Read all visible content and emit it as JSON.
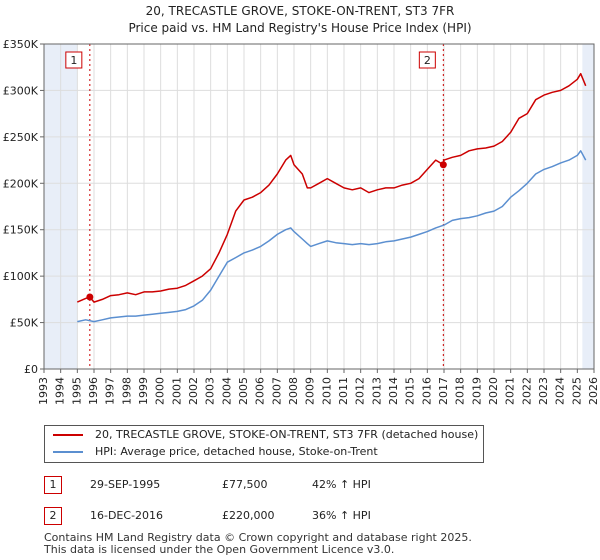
{
  "chart_data": {
    "type": "line",
    "title": "20, TRECASTLE GROVE, STOKE-ON-TRENT, ST3 7FR",
    "subtitle": "Price paid vs. HM Land Registry's House Price Index (HPI)",
    "xlim": [
      1993,
      2026
    ],
    "ylim": [
      0,
      350000
    ],
    "x_ticks": [
      1993,
      1994,
      1995,
      1996,
      1997,
      1998,
      1999,
      2000,
      2001,
      2002,
      2003,
      2004,
      2005,
      2006,
      2007,
      2008,
      2009,
      2010,
      2011,
      2012,
      2013,
      2014,
      2015,
      2016,
      2017,
      2018,
      2019,
      2020,
      2021,
      2022,
      2023,
      2024,
      2025,
      2026
    ],
    "y_ticks": [
      0,
      50000,
      100000,
      150000,
      200000,
      250000,
      300000,
      350000
    ],
    "y_tick_labels": [
      "£0",
      "£50K",
      "£100K",
      "£150K",
      "£200K",
      "£250K",
      "£300K",
      "£350K"
    ],
    "colors": {
      "property": "#cc0000",
      "hpi": "#5b8fd0",
      "shade": "#e8eef8",
      "grid": "#dddddd"
    },
    "shaded_ranges": [
      [
        1993,
        1995
      ],
      [
        2025.3,
        2026
      ]
    ],
    "series": [
      {
        "name": "20, TRECASTLE GROVE, STOKE-ON-TRENT, ST3 7FR (detached house)",
        "color": "#cc0000",
        "x": [
          1995.0,
          1995.5,
          1995.75,
          1996.0,
          1996.5,
          1997.0,
          1997.5,
          1998.0,
          1998.5,
          1999.0,
          1999.5,
          2000.0,
          2000.5,
          2001.0,
          2001.5,
          2002.0,
          2002.5,
          2003.0,
          2003.5,
          2004.0,
          2004.5,
          2005.0,
          2005.5,
          2006.0,
          2006.5,
          2007.0,
          2007.5,
          2007.8,
          2008.0,
          2008.5,
          2008.8,
          2009.0,
          2009.5,
          2010.0,
          2010.5,
          2011.0,
          2011.5,
          2012.0,
          2012.5,
          2013.0,
          2013.5,
          2014.0,
          2014.5,
          2015.0,
          2015.5,
          2016.0,
          2016.5,
          2016.96,
          2017.0,
          2017.5,
          2018.0,
          2018.5,
          2019.0,
          2019.5,
          2020.0,
          2020.5,
          2021.0,
          2021.5,
          2022.0,
          2022.5,
          2023.0,
          2023.5,
          2024.0,
          2024.5,
          2025.0,
          2025.2,
          2025.5
        ],
        "y": [
          72000,
          76000,
          77500,
          72000,
          75000,
          79000,
          80000,
          82000,
          80000,
          83000,
          83000,
          84000,
          86000,
          87000,
          90000,
          95000,
          100000,
          108000,
          125000,
          145000,
          170000,
          182000,
          185000,
          190000,
          198000,
          210000,
          225000,
          230000,
          220000,
          210000,
          195000,
          195000,
          200000,
          205000,
          200000,
          195000,
          193000,
          195000,
          190000,
          193000,
          195000,
          195000,
          198000,
          200000,
          205000,
          215000,
          225000,
          220000,
          225000,
          228000,
          230000,
          235000,
          237000,
          238000,
          240000,
          245000,
          255000,
          270000,
          275000,
          290000,
          295000,
          298000,
          300000,
          305000,
          312000,
          318000,
          305000
        ]
      },
      {
        "name": "HPI: Average price, detached house, Stoke-on-Trent",
        "color": "#5b8fd0",
        "x": [
          1995.0,
          1995.5,
          1996.0,
          1996.5,
          1997.0,
          1997.5,
          1998.0,
          1998.5,
          1999.0,
          1999.5,
          2000.0,
          2000.5,
          2001.0,
          2001.5,
          2002.0,
          2002.5,
          2003.0,
          2003.5,
          2004.0,
          2004.5,
          2005.0,
          2005.5,
          2006.0,
          2006.5,
          2007.0,
          2007.5,
          2007.8,
          2008.0,
          2008.5,
          2008.8,
          2009.0,
          2009.5,
          2010.0,
          2010.5,
          2011.0,
          2011.5,
          2012.0,
          2012.5,
          2013.0,
          2013.5,
          2014.0,
          2014.5,
          2015.0,
          2015.5,
          2016.0,
          2016.5,
          2017.0,
          2017.5,
          2018.0,
          2018.5,
          2019.0,
          2019.5,
          2020.0,
          2020.5,
          2021.0,
          2021.5,
          2022.0,
          2022.5,
          2023.0,
          2023.5,
          2024.0,
          2024.5,
          2025.0,
          2025.2,
          2025.5
        ],
        "y": [
          51000,
          53000,
          51000,
          53000,
          55000,
          56000,
          57000,
          57000,
          58000,
          59000,
          60000,
          61000,
          62000,
          64000,
          68000,
          74000,
          85000,
          100000,
          115000,
          120000,
          125000,
          128000,
          132000,
          138000,
          145000,
          150000,
          152000,
          148000,
          140000,
          135000,
          132000,
          135000,
          138000,
          136000,
          135000,
          134000,
          135000,
          134000,
          135000,
          137000,
          138000,
          140000,
          142000,
          145000,
          148000,
          152000,
          155000,
          160000,
          162000,
          163000,
          165000,
          168000,
          170000,
          175000,
          185000,
          192000,
          200000,
          210000,
          215000,
          218000,
          222000,
          225000,
          230000,
          235000,
          225000
        ]
      }
    ],
    "sales": [
      {
        "label": "1",
        "x": 1995.75,
        "y": 77500,
        "date": "29-SEP-1995",
        "price": "£77,500",
        "hpi_delta": "42% ↑ HPI"
      },
      {
        "label": "2",
        "x": 2016.96,
        "y": 220000,
        "date": "16-DEC-2016",
        "price": "£220,000",
        "hpi_delta": "36% ↑ HPI"
      }
    ]
  },
  "footer": {
    "line1": "Contains HM Land Registry data © Crown copyright and database right 2025.",
    "line2": "This data is licensed under the Open Government Licence v3.0."
  }
}
